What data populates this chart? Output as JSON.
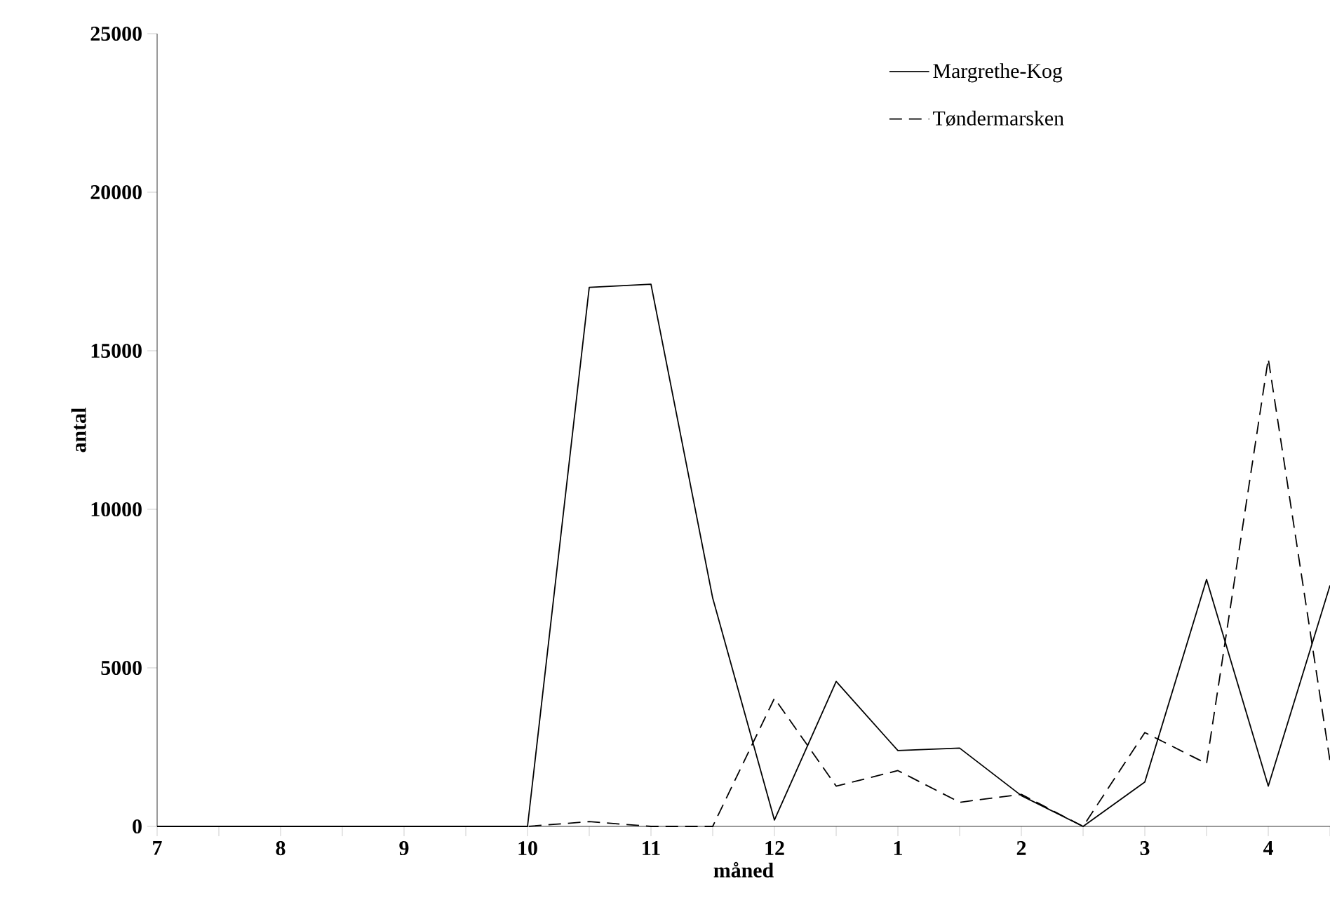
{
  "chart_data": {
    "type": "line",
    "xlabel": "måned",
    "ylabel": "antal",
    "categories": [
      "7",
      null,
      "8",
      null,
      "9",
      null,
      "10",
      null,
      "11",
      null,
      "12",
      null,
      "1",
      null,
      "2",
      null,
      "3",
      null,
      "4",
      null
    ],
    "series": [
      {
        "name": "Margrethe-Kog",
        "color": "#000000",
        "line_style": "solid",
        "values": [
          0,
          0,
          0,
          0,
          0,
          0,
          0,
          17000,
          17100,
          7200,
          200,
          4570,
          2390,
          2470,
          970,
          0,
          1400,
          7790,
          1270,
          7600
        ]
      },
      {
        "name": "Tøndermarsken",
        "color": "#000000",
        "line_style": "dashed",
        "values": [
          0,
          0,
          0,
          0,
          0,
          0,
          0,
          150,
          0,
          0,
          4040,
          1270,
          1760,
          760,
          1010,
          0,
          2960,
          1980,
          14750,
          2060
        ]
      }
    ],
    "ylim": [
      0,
      25000
    ],
    "yticks": [
      0,
      5000,
      10000,
      15000,
      20000,
      25000
    ],
    "legend": "top right",
    "marker": "none"
  }
}
